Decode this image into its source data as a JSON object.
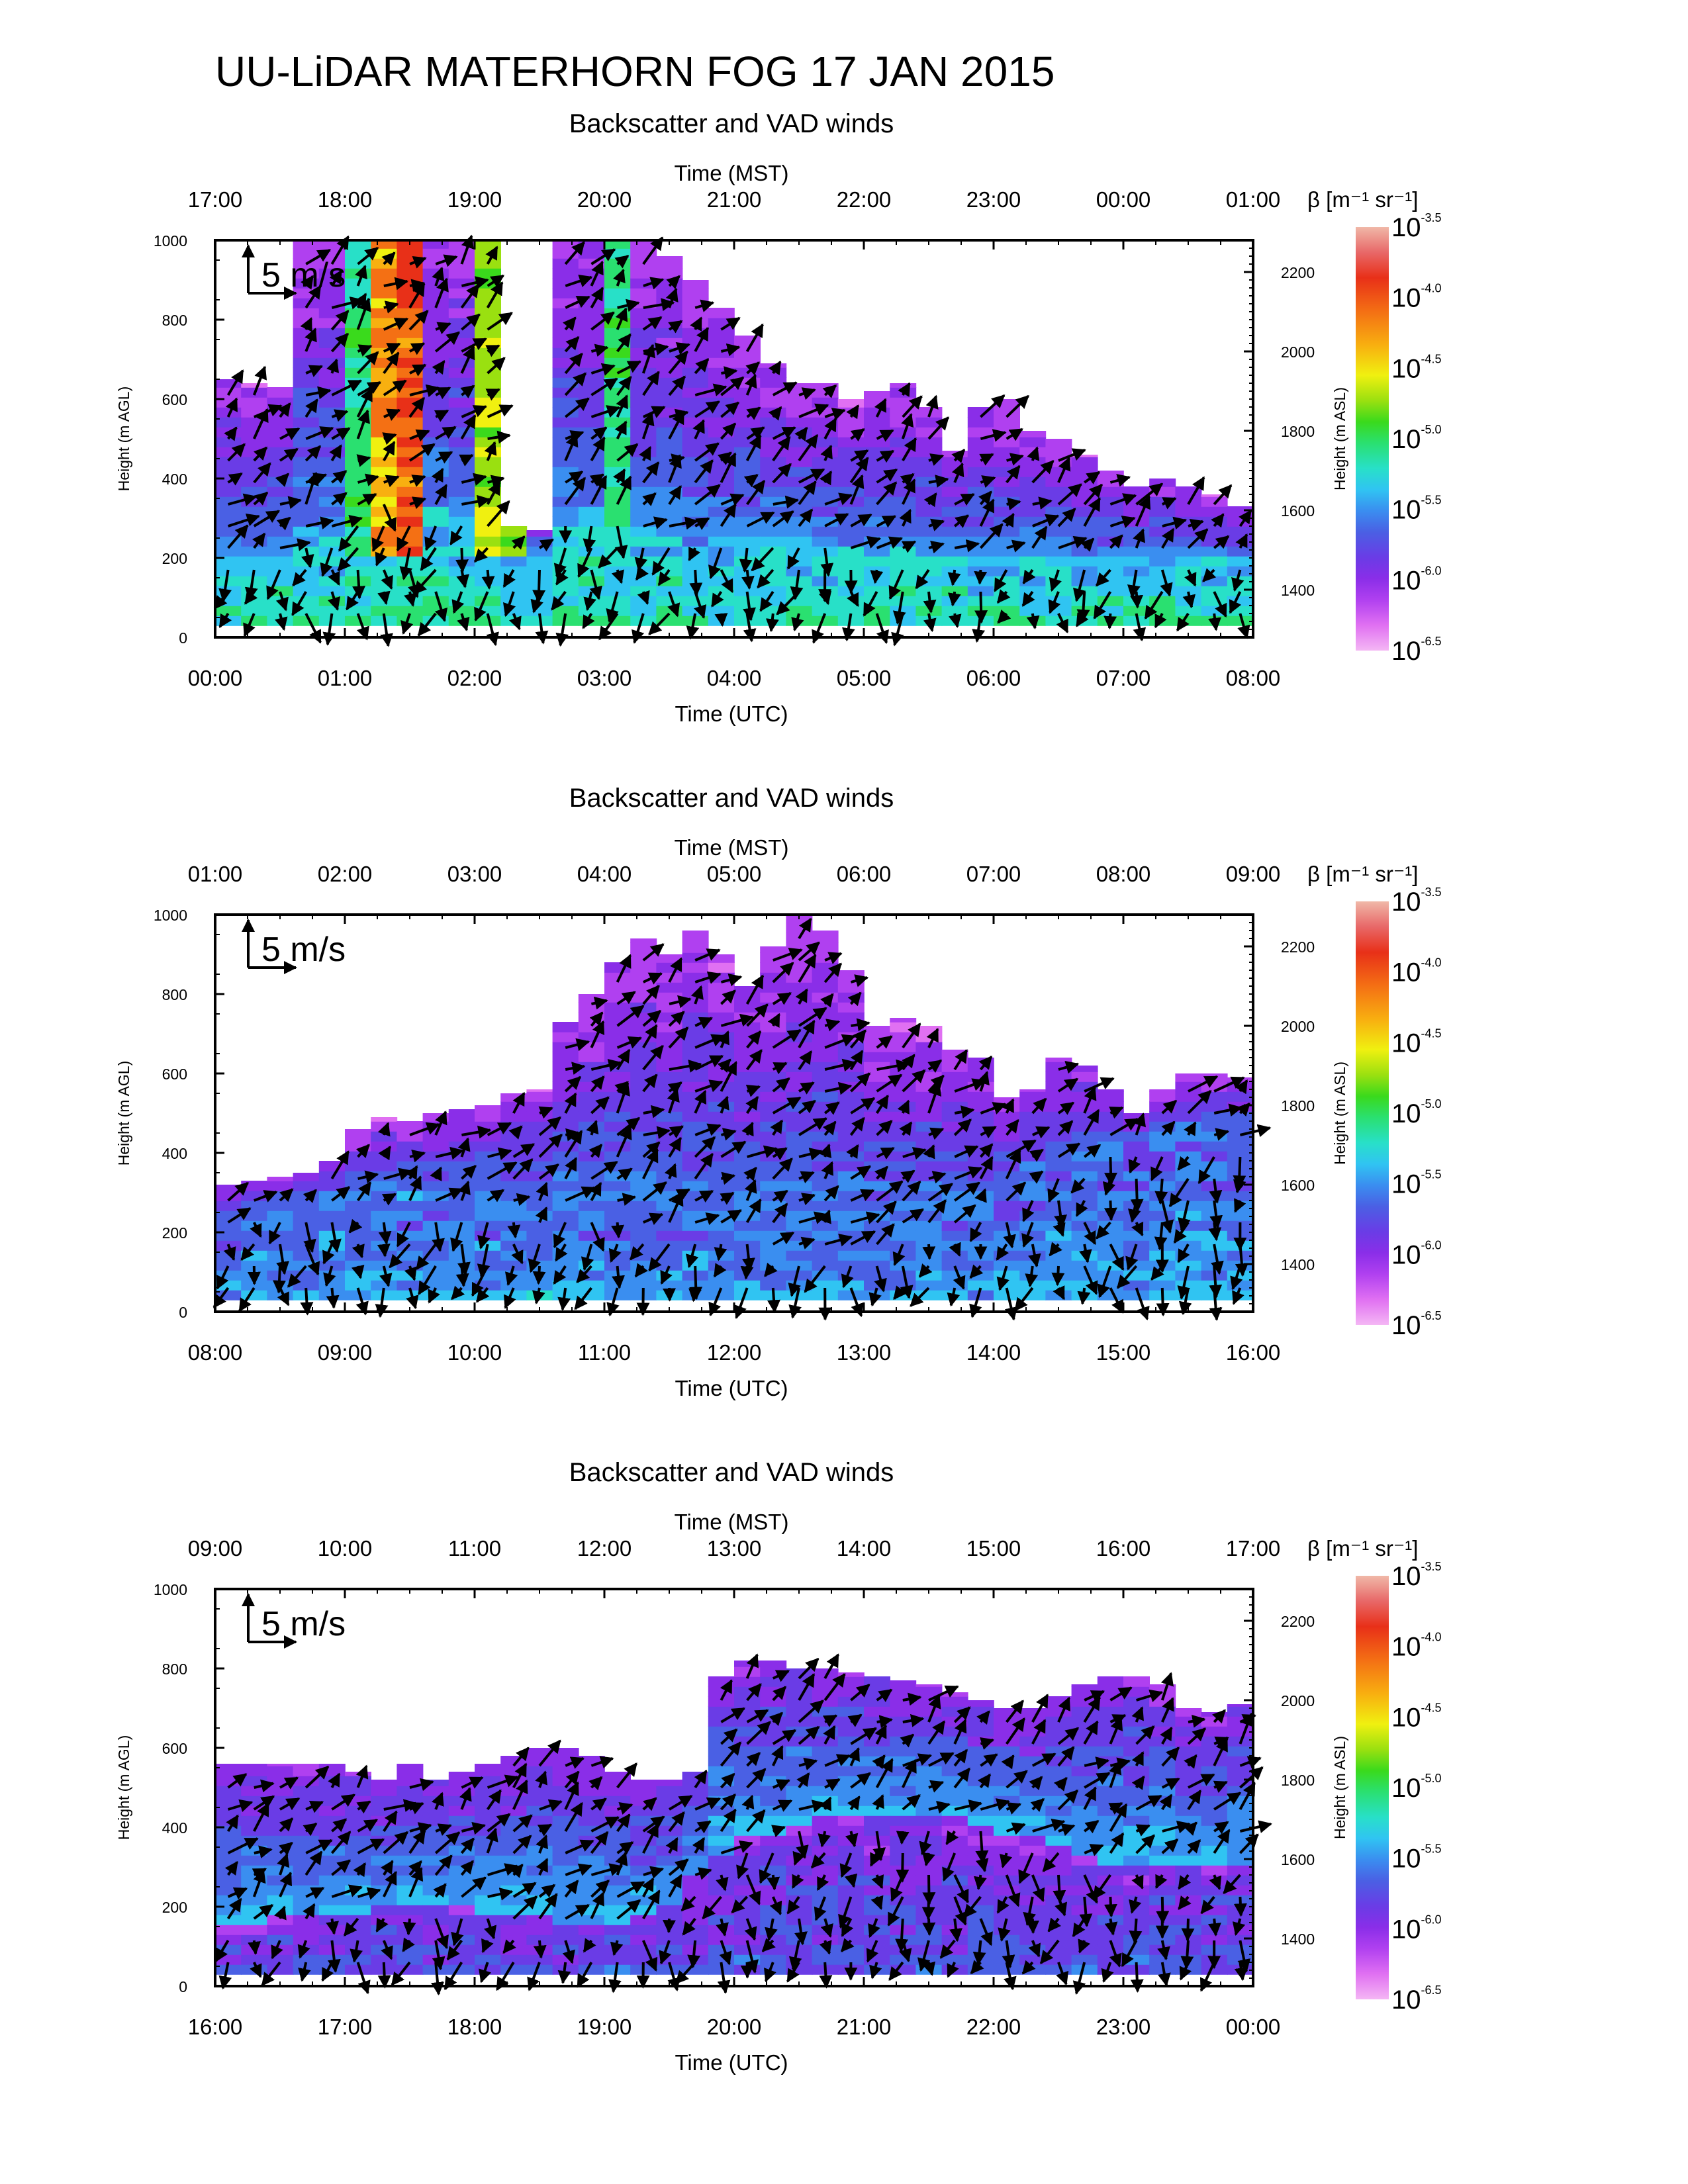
{
  "page_title": "UU-LiDAR MATERHORN FOG  17 JAN 2015",
  "colors": {
    "scale": [
      "#f4b6f4",
      "#e070f2",
      "#b040f0",
      "#8a2ee8",
      "#6a3ce6",
      "#4a60e4",
      "#3a8ef0",
      "#30c4f2",
      "#28e0c8",
      "#2ae070",
      "#3ada1c",
      "#9ae010",
      "#f0f010",
      "#f8b010",
      "#f47014",
      "#e83018",
      "#e86868",
      "#f0b8a8"
    ],
    "arrow": "#000000",
    "axis": "#000000"
  },
  "colorbar": {
    "label": "β [m⁻¹ sr⁻¹]",
    "ticks": [
      {
        "base": "10",
        "exp": "-3.5"
      },
      {
        "base": "10",
        "exp": "-4.0"
      },
      {
        "base": "10",
        "exp": "-4.5"
      },
      {
        "base": "10",
        "exp": "-5.0"
      },
      {
        "base": "10",
        "exp": "-5.5"
      },
      {
        "base": "10",
        "exp": "-6.0"
      },
      {
        "base": "10",
        "exp": "-6.5"
      }
    ]
  },
  "chart_data": [
    {
      "type": "heatmap",
      "title": "Backscatter and VAD winds",
      "x_top_label": "Time (MST)",
      "x_top_ticks": [
        "17:00",
        "18:00",
        "19:00",
        "20:00",
        "21:00",
        "22:00",
        "23:00",
        "00:00",
        "01:00"
      ],
      "x_bottom_label": "Time (UTC)",
      "x_bottom_ticks": [
        "00:00",
        "01:00",
        "02:00",
        "03:00",
        "04:00",
        "05:00",
        "06:00",
        "07:00",
        "08:00"
      ],
      "ylabel": "Height (m AGL)",
      "yticks": [
        "0",
        "200",
        "400",
        "600",
        "800",
        "1000"
      ],
      "ylim": [
        0,
        1000
      ],
      "y2label": "Height (m ASL)",
      "y2ticks": [
        "1400",
        "1600",
        "1800",
        "2000",
        "2200"
      ],
      "y2lim": [
        1280,
        2280
      ],
      "scale_label": "5 m/s",
      "color_scale": "log10 backscatter, -6.5 to -3.5",
      "top_m": [
        650,
        640,
        630,
        1000,
        1000,
        1000,
        1000,
        1000,
        1000,
        1000,
        1000,
        280,
        270,
        1000,
        1000,
        1000,
        1000,
        960,
        900,
        830,
        760,
        690,
        640,
        640,
        600,
        620,
        640,
        580,
        470,
        580,
        600,
        520,
        500,
        460,
        420,
        380,
        400,
        380,
        360,
        330
      ],
      "surface_m": [
        200,
        200,
        220,
        260,
        280,
        300,
        360,
        320,
        330,
        300,
        250,
        200,
        200,
        320,
        330,
        300,
        260,
        240,
        230,
        240,
        250,
        250,
        240,
        230,
        220,
        220,
        210,
        210,
        200,
        200,
        200,
        190,
        190,
        190,
        190,
        190,
        190,
        190,
        190,
        190
      ],
      "plumes": [
        {
          "t": 1.45,
          "w": 0.25,
          "level": 0.85
        },
        {
          "t": 1.15,
          "w": 0.12,
          "level": 0.55
        },
        {
          "t": 2.2,
          "w": 0.12,
          "level": 0.7
        },
        {
          "t": 3.05,
          "w": 0.12,
          "level": 0.55
        }
      ],
      "base_level": 0.5,
      "upper_level": 0.05
    },
    {
      "type": "heatmap",
      "title": "Backscatter and VAD winds",
      "x_top_label": "Time (MST)",
      "x_top_ticks": [
        "01:00",
        "02:00",
        "03:00",
        "04:00",
        "05:00",
        "06:00",
        "07:00",
        "08:00",
        "09:00"
      ],
      "x_bottom_label": "Time (UTC)",
      "x_bottom_ticks": [
        "08:00",
        "09:00",
        "10:00",
        "11:00",
        "12:00",
        "13:00",
        "14:00",
        "15:00",
        "16:00"
      ],
      "ylabel": "Height (m AGL)",
      "yticks": [
        "0",
        "200",
        "400",
        "600",
        "800",
        "1000"
      ],
      "ylim": [
        0,
        1000
      ],
      "y2label": "Height (m ASL)",
      "y2ticks": [
        "1400",
        "1600",
        "1800",
        "2000",
        "2200"
      ],
      "y2lim": [
        1280,
        2280
      ],
      "scale_label": "5 m/s",
      "color_scale": "log10 backscatter, -6.5 to -3.5",
      "top_m": [
        320,
        330,
        340,
        350,
        380,
        460,
        490,
        480,
        500,
        510,
        520,
        550,
        560,
        730,
        800,
        880,
        940,
        900,
        960,
        900,
        820,
        920,
        1000,
        960,
        860,
        720,
        740,
        720,
        660,
        640,
        540,
        560,
        640,
        620,
        560,
        500,
        560,
        600,
        600,
        590
      ],
      "surface_m": [
        220,
        240,
        250,
        260,
        270,
        270,
        280,
        280,
        270,
        260,
        250,
        230,
        220,
        240,
        260,
        240,
        220,
        200,
        200,
        190,
        180,
        170,
        170,
        170,
        170,
        170,
        180,
        200,
        220,
        240,
        260,
        300,
        340,
        380,
        400,
        420,
        420,
        420,
        430,
        440
      ],
      "plumes": [],
      "base_level": 0.4,
      "upper_level": 0.05
    },
    {
      "type": "heatmap",
      "title": "Backscatter and VAD winds",
      "x_top_label": "Time (MST)",
      "x_top_ticks": [
        "09:00",
        "10:00",
        "11:00",
        "12:00",
        "13:00",
        "14:00",
        "15:00",
        "16:00",
        "17:00"
      ],
      "x_bottom_label": "Time (UTC)",
      "x_bottom_ticks": [
        "16:00",
        "17:00",
        "18:00",
        "19:00",
        "20:00",
        "21:00",
        "22:00",
        "23:00",
        "00:00"
      ],
      "ylabel": "Height (m AGL)",
      "yticks": [
        "0",
        "200",
        "400",
        "600",
        "800",
        "1000"
      ],
      "ylim": [
        0,
        1000
      ],
      "y2label": "Height (m ASL)",
      "y2ticks": [
        "1400",
        "1600",
        "1800",
        "2000",
        "2200"
      ],
      "y2lim": [
        1280,
        2280
      ],
      "scale_label": "5 m/s",
      "color_scale": "log10 backscatter, -6.5 to -3.5",
      "top_m": [
        560,
        560,
        560,
        560,
        560,
        540,
        520,
        560,
        520,
        540,
        560,
        580,
        600,
        600,
        580,
        540,
        520,
        520,
        540,
        780,
        820,
        820,
        800,
        800,
        790,
        780,
        770,
        760,
        740,
        720,
        700,
        700,
        730,
        760,
        780,
        780,
        760,
        700,
        690,
        710
      ],
      "surface_m": [
        140,
        150,
        160,
        170,
        180,
        180,
        190,
        200,
        200,
        190,
        180,
        170,
        160,
        150,
        150,
        150,
        160,
        200,
        260,
        320,
        360,
        380,
        400,
        420,
        420,
        420,
        420,
        420,
        410,
        400,
        380,
        360,
        340,
        320,
        300,
        300,
        300,
        300,
        300,
        300
      ],
      "plumes": [],
      "base_level": 0.3,
      "upper_level": 0.1
    }
  ]
}
